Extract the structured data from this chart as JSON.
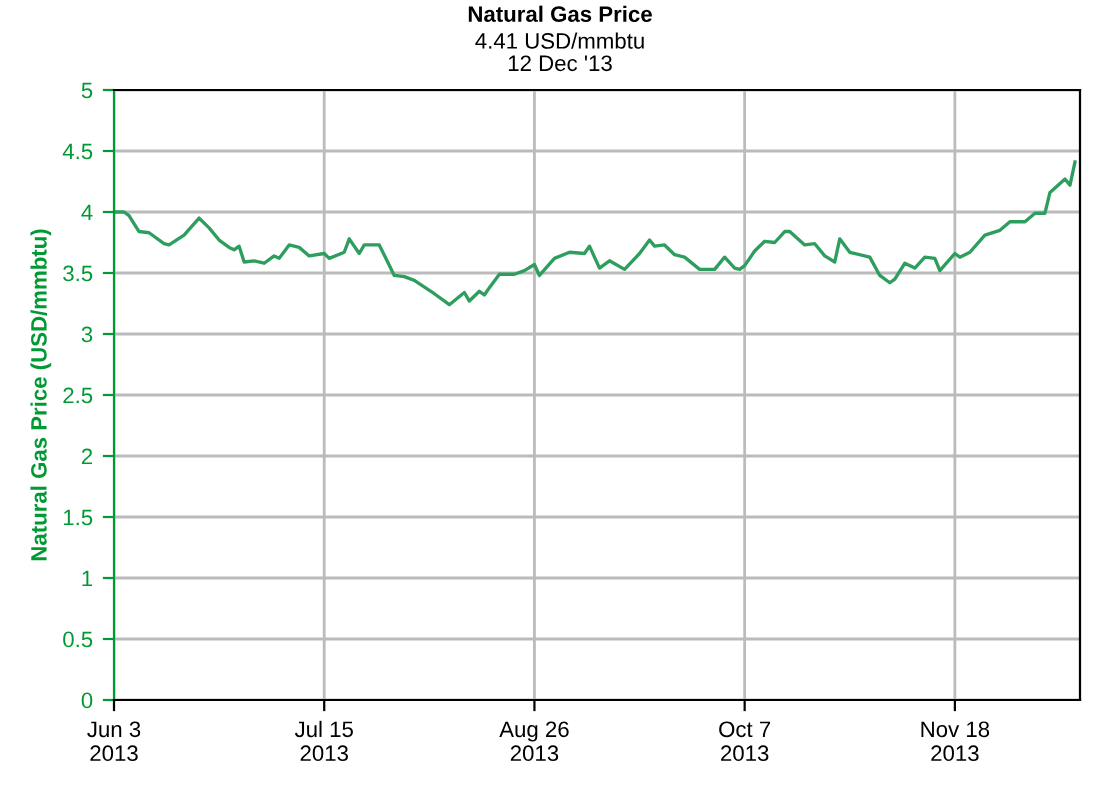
{
  "chart_data": {
    "type": "line",
    "title": "Natural Gas Price",
    "subtitle": "4.41 USD/mmbtu\n12 Dec '13",
    "ylabel": "Natural Gas Price (USD/mmbtu)",
    "x": [
      "2013-06-03",
      "2013-06-05",
      "2013-06-06",
      "2013-06-08",
      "2013-06-10",
      "2013-06-13",
      "2013-06-14",
      "2013-06-17",
      "2013-06-20",
      "2013-06-22",
      "2013-06-24",
      "2013-06-26",
      "2013-06-27",
      "2013-06-28",
      "2013-06-29",
      "2013-07-01",
      "2013-07-03",
      "2013-07-05",
      "2013-07-06",
      "2013-07-08",
      "2013-07-10",
      "2013-07-12",
      "2013-07-15",
      "2013-07-16",
      "2013-07-19",
      "2013-07-20",
      "2013-07-22",
      "2013-07-23",
      "2013-07-26",
      "2013-07-29",
      "2013-07-31",
      "2013-08-02",
      "2013-08-06",
      "2013-08-09",
      "2013-08-12",
      "2013-08-13",
      "2013-08-15",
      "2013-08-16",
      "2013-08-17",
      "2013-08-19",
      "2013-08-22",
      "2013-08-24",
      "2013-08-26",
      "2013-08-27",
      "2013-08-30",
      "2013-09-02",
      "2013-09-05",
      "2013-09-06",
      "2013-09-08",
      "2013-09-10",
      "2013-09-13",
      "2013-09-16",
      "2013-09-18",
      "2013-09-19",
      "2013-09-21",
      "2013-09-23",
      "2013-09-25",
      "2013-09-28",
      "2013-10-01",
      "2013-10-03",
      "2013-10-05",
      "2013-10-06",
      "2013-10-07",
      "2013-10-09",
      "2013-10-11",
      "2013-10-13",
      "2013-10-15",
      "2013-10-16",
      "2013-10-19",
      "2013-10-21",
      "2013-10-23",
      "2013-10-25",
      "2013-10-26",
      "2013-10-28",
      "2013-11-01",
      "2013-11-03",
      "2013-11-05",
      "2013-11-06",
      "2013-11-08",
      "2013-11-10",
      "2013-11-12",
      "2013-11-14",
      "2013-11-15",
      "2013-11-18",
      "2013-11-19",
      "2013-11-21",
      "2013-11-24",
      "2013-11-27",
      "2013-11-29",
      "2013-12-02",
      "2013-12-04",
      "2013-12-06",
      "2013-12-07",
      "2013-12-10",
      "2013-12-11",
      "2013-12-12"
    ],
    "series": [
      {
        "color": "#2e9e5e",
        "values": [
          4.0,
          4.0,
          3.97,
          3.84,
          3.83,
          3.74,
          3.73,
          3.81,
          3.95,
          3.87,
          3.77,
          3.71,
          3.69,
          3.72,
          3.59,
          3.6,
          3.58,
          3.64,
          3.62,
          3.73,
          3.71,
          3.64,
          3.66,
          3.62,
          3.67,
          3.78,
          3.66,
          3.73,
          3.73,
          3.48,
          3.47,
          3.44,
          3.33,
          3.24,
          3.34,
          3.27,
          3.35,
          3.32,
          3.38,
          3.49,
          3.49,
          3.52,
          3.57,
          3.48,
          3.62,
          3.67,
          3.66,
          3.72,
          3.54,
          3.6,
          3.53,
          3.66,
          3.77,
          3.72,
          3.73,
          3.65,
          3.63,
          3.53,
          3.53,
          3.63,
          3.54,
          3.53,
          3.56,
          3.68,
          3.76,
          3.75,
          3.84,
          3.84,
          3.73,
          3.74,
          3.64,
          3.59,
          3.78,
          3.67,
          3.63,
          3.48,
          3.42,
          3.45,
          3.58,
          3.54,
          3.63,
          3.62,
          3.52,
          3.66,
          3.63,
          3.67,
          3.81,
          3.85,
          3.92,
          3.92,
          3.99,
          3.99,
          4.16,
          4.27,
          4.22,
          4.41
        ]
      }
    ],
    "xlim": [
      "2013-06-03",
      "2013-12-13"
    ],
    "xticks": [
      {
        "value": "2013-06-03",
        "label": "Jun 3\n2013"
      },
      {
        "value": "2013-07-15",
        "label": "Jul 15\n2013"
      },
      {
        "value": "2013-08-26",
        "label": "Aug 26\n2013"
      },
      {
        "value": "2013-10-07",
        "label": "Oct 7\n2013"
      },
      {
        "value": "2013-11-18",
        "label": "Nov 18\n2013"
      }
    ],
    "ylim": [
      0,
      5
    ],
    "yticks": [
      0,
      0.5,
      1,
      1.5,
      2,
      2.5,
      3,
      3.5,
      4,
      4.5,
      5
    ],
    "grid": true,
    "legend": false,
    "marker": "none",
    "line_style": "solid"
  }
}
